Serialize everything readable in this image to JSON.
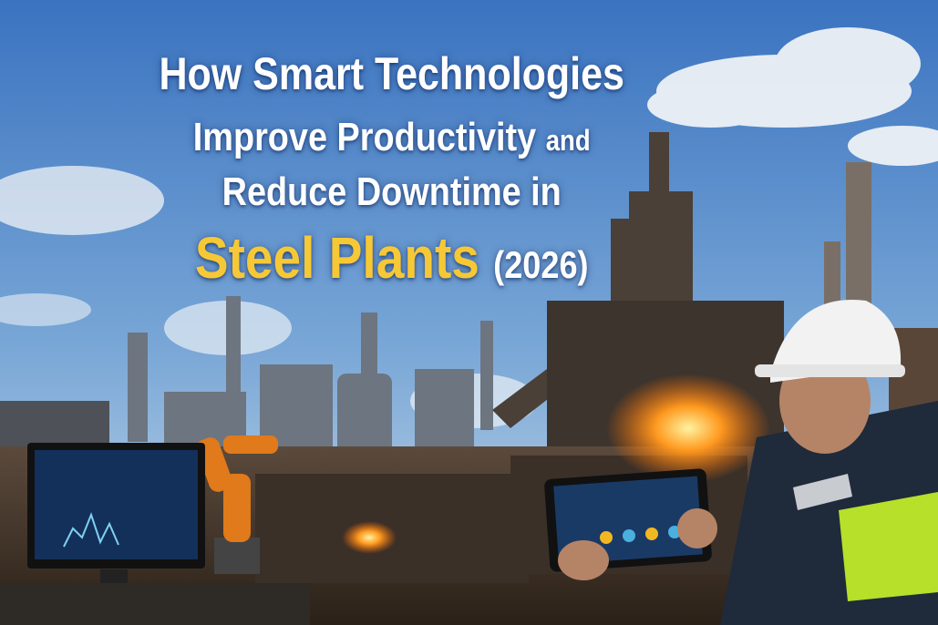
{
  "headline": {
    "line1": "How Smart Technologies",
    "line2_main": "Improve Productivity",
    "line2_suffix": "and",
    "line3": "Reduce Downtime in",
    "line4_highlight": "Steel Plants",
    "line4_year": "(2026)"
  },
  "colors": {
    "sky_top": "#3f79c4",
    "sky_bottom": "#bfd6ea",
    "highlight_yellow": "#f7c836",
    "fire_orange": "#ff8a1a",
    "helmet_white": "#f2f2f2",
    "hi_vis_green": "#b6e02a"
  }
}
